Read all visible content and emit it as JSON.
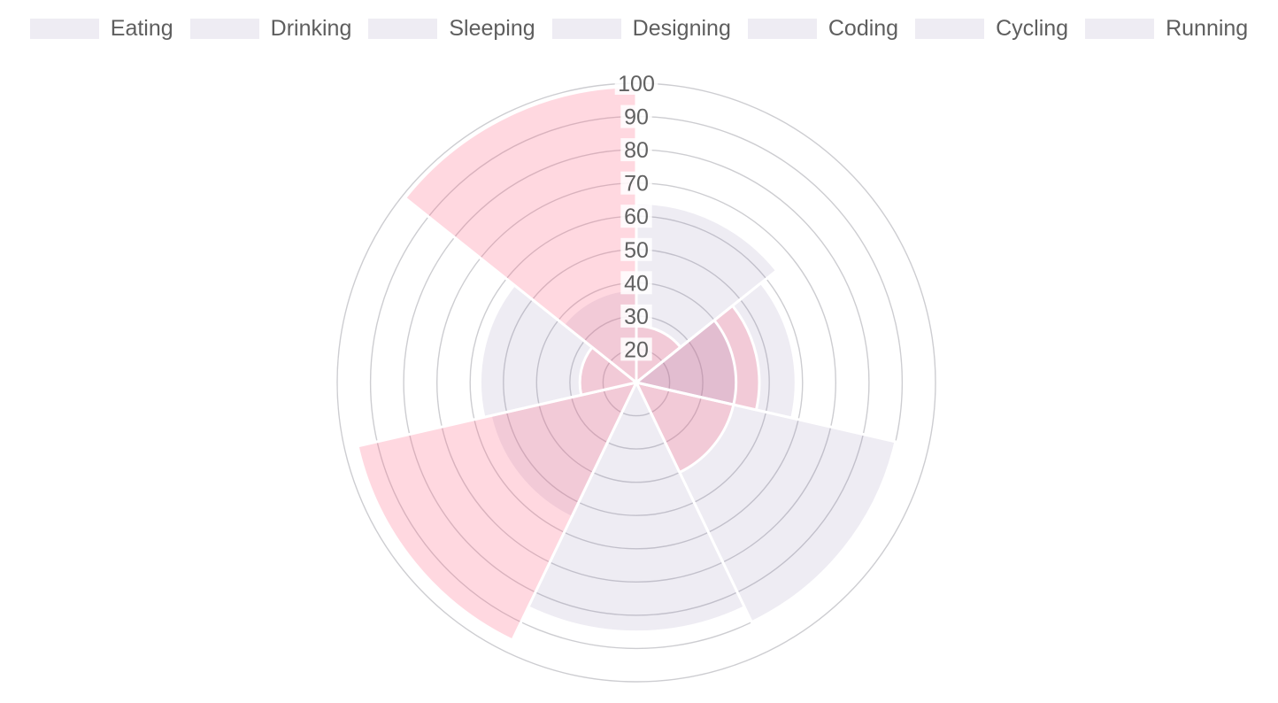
{
  "legend": {
    "items": [
      "Eating",
      "Drinking",
      "Sleeping",
      "Designing",
      "Coding",
      "Cycling",
      "Running"
    ],
    "swatch_color": "rgba(120,110,165,0.13)",
    "label_color": "#5e5e5e"
  },
  "chart_data": {
    "type": "polarArea",
    "categories": [
      "Eating",
      "Drinking",
      "Sleeping",
      "Designing",
      "Coding",
      "Cycling",
      "Running"
    ],
    "series": [
      {
        "name": "base-gray",
        "color": "rgba(120,110,165,0.13)",
        "values": [
          64,
          58,
          90,
          85,
          55,
          57,
          38
        ]
      },
      {
        "name": "pink",
        "color": "rgba(255,99,132,0.25)",
        "values": [
          27,
          47,
          40,
          null,
          96,
          27,
          99
        ]
      },
      {
        "name": "inner-gray",
        "color": "rgba(120,110,165,0.13)",
        "values": [
          null,
          40,
          null,
          null,
          null,
          null,
          null
        ]
      }
    ],
    "scale": {
      "min": 10,
      "max": 100,
      "tick_step": 10,
      "ticks": [
        20,
        30,
        40,
        50,
        60,
        70,
        80,
        90,
        100
      ],
      "tick_color": "#616161",
      "tick_backdrop": "rgba(255,255,255,0.85)",
      "grid_color": "#cdcdd1"
    },
    "start": "top",
    "direction": "clockwise",
    "border": {
      "color": "#ffffff",
      "width": 3
    },
    "layout": {
      "center_x": 719,
      "center_y": 432,
      "outer_radius": 338,
      "legend_position": "top",
      "grid": true
    }
  }
}
